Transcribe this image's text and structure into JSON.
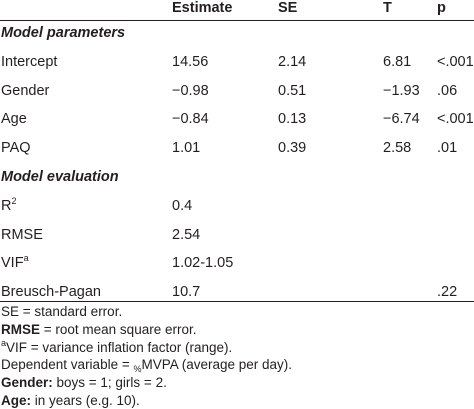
{
  "table": {
    "header": [
      "Estimate",
      "SE",
      "T",
      "p"
    ],
    "sections": [
      {
        "title": "Model parameters",
        "rows": [
          {
            "label": "Intercept",
            "cells": [
              "14.56",
              "2.14",
              "6.81",
              "<.001"
            ]
          },
          {
            "label": "Gender",
            "cells": [
              "−0.98",
              "0.51",
              "−1.93",
              ".06"
            ]
          },
          {
            "label": "Age",
            "cells": [
              "−0.84",
              "0.13",
              "−6.74",
              "<.001"
            ]
          },
          {
            "label": "PAQ",
            "cells": [
              "1.01",
              "0.39",
              "2.58",
              ".01"
            ]
          }
        ]
      },
      {
        "title": "Model evaluation",
        "rows": [
          {
            "label": "R",
            "sup": "2",
            "cells": [
              "0.4",
              null,
              null,
              null
            ]
          },
          {
            "label": "RMSE",
            "cells": [
              "2.54",
              null,
              null,
              null
            ]
          },
          {
            "label": "VIF",
            "sup": "a",
            "cells": [
              "1.02-1.05",
              null,
              null,
              null
            ]
          },
          {
            "label": "Breusch-Pagan",
            "cells": [
              "10.7",
              null,
              null,
              ".22"
            ]
          }
        ]
      }
    ]
  },
  "footnotes": [
    {
      "text": "SE = standard error."
    },
    {
      "bold": "RMSE",
      "text": " = root mean square error."
    },
    {
      "sup": "a",
      "text": "VIF = variance inflation factor (range)."
    },
    {
      "text": "Dependent variable = ",
      "sub": "%",
      "after": "MVPA (average per day)."
    },
    {
      "bold": "Gender:",
      "text": " boys = 1; girls = 2."
    },
    {
      "bold": "Age:",
      "text": " in years (e.g. 10)."
    }
  ]
}
